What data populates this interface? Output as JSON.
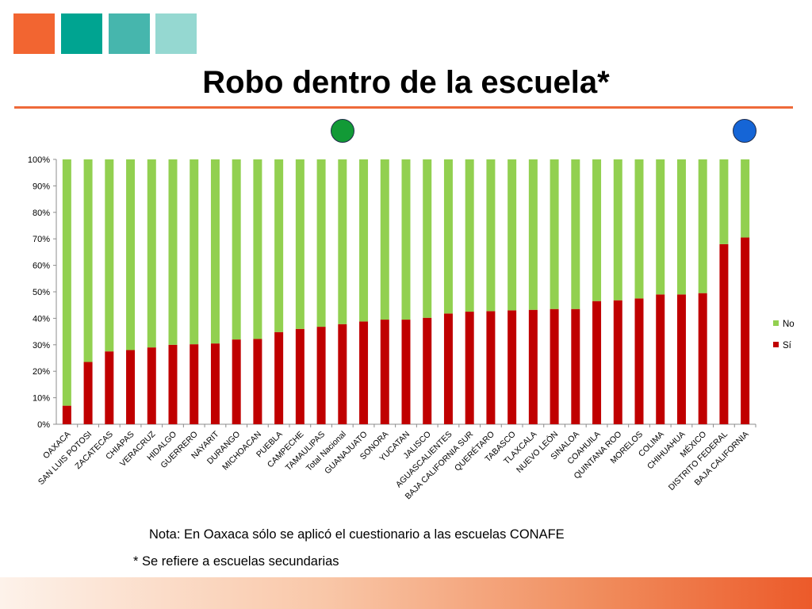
{
  "header": {
    "squares": [
      {
        "name": "orange",
        "color": "#f26531"
      },
      {
        "name": "teal-dark",
        "color": "#00a491"
      },
      {
        "name": "teal-mid",
        "color": "#46b6ad"
      },
      {
        "name": "teal-light",
        "color": "#95d8d1"
      }
    ],
    "title": "Robo dentro de la escuela*",
    "markers": [
      {
        "name": "green-dot",
        "color": "#129a36"
      },
      {
        "name": "blue-dot",
        "color": "#1565d6"
      }
    ]
  },
  "notes": {
    "note1": "Nota: En Oaxaca sólo se aplicó el cuestionario a las escuelas CONAFE",
    "note2": "* Se refiere a escuelas secundarias"
  },
  "chart_data": {
    "type": "bar",
    "stacked": true,
    "percent": true,
    "categories": [
      "OAXACA",
      "SAN LUIS POTOSI",
      "ZACATECAS",
      "CHIAPAS",
      "VERACRUZ",
      "HIDALGO",
      "GUERRERO",
      "NAYARIT",
      "DURANGO",
      "MICHOACAN",
      "PUEBLA",
      "CAMPECHE",
      "TAMAULIPAS",
      "Total Nacional",
      "GUANAJUATO",
      "SONORA",
      "YUCATAN",
      "JALISCO",
      "AGUASCALIENTES",
      "BAJA CALIFORNIA SUR",
      "QUERÉTARO",
      "TABASCO",
      "TLAXCALA",
      "NUEVO LEÓN",
      "SINALOA",
      "COAHUILA",
      "QUINTANA ROO",
      "MORELOS",
      "COLIMA",
      "CHIHUAHUA",
      "MÉXICO",
      "DISTRITO FEDERAL",
      "BAJA CALIFORNIA"
    ],
    "series": [
      {
        "name": "Sí",
        "color": "#c00000",
        "values": [
          7,
          23.5,
          27.5,
          28,
          29,
          30,
          30.2,
          30.5,
          32,
          32.2,
          34.8,
          36,
          36.8,
          37.8,
          38.8,
          39.5,
          39.5,
          40.2,
          41.8,
          42.5,
          42.7,
          43,
          43.2,
          43.5,
          43.5,
          46.5,
          46.8,
          47.5,
          49,
          49,
          49.5,
          68,
          70.5
        ]
      },
      {
        "name": "No",
        "color": "#92d050",
        "values": [
          93,
          76.5,
          72.5,
          72,
          71,
          70,
          69.8,
          69.5,
          68,
          67.8,
          65.2,
          64,
          63.2,
          62.2,
          61.2,
          60.5,
          60.5,
          59.8,
          58.2,
          57.5,
          57.3,
          57,
          56.8,
          56.5,
          56.5,
          53.5,
          53.2,
          52.5,
          51,
          51,
          50.5,
          32,
          29.5
        ]
      }
    ],
    "yticks": [
      "0%",
      "10%",
      "20%",
      "30%",
      "40%",
      "50%",
      "60%",
      "70%",
      "80%",
      "90%",
      "100%"
    ],
    "ylim": [
      0,
      100
    ],
    "legend_position": "right",
    "legend_order": [
      "No",
      "Sí"
    ],
    "grid": false
  }
}
